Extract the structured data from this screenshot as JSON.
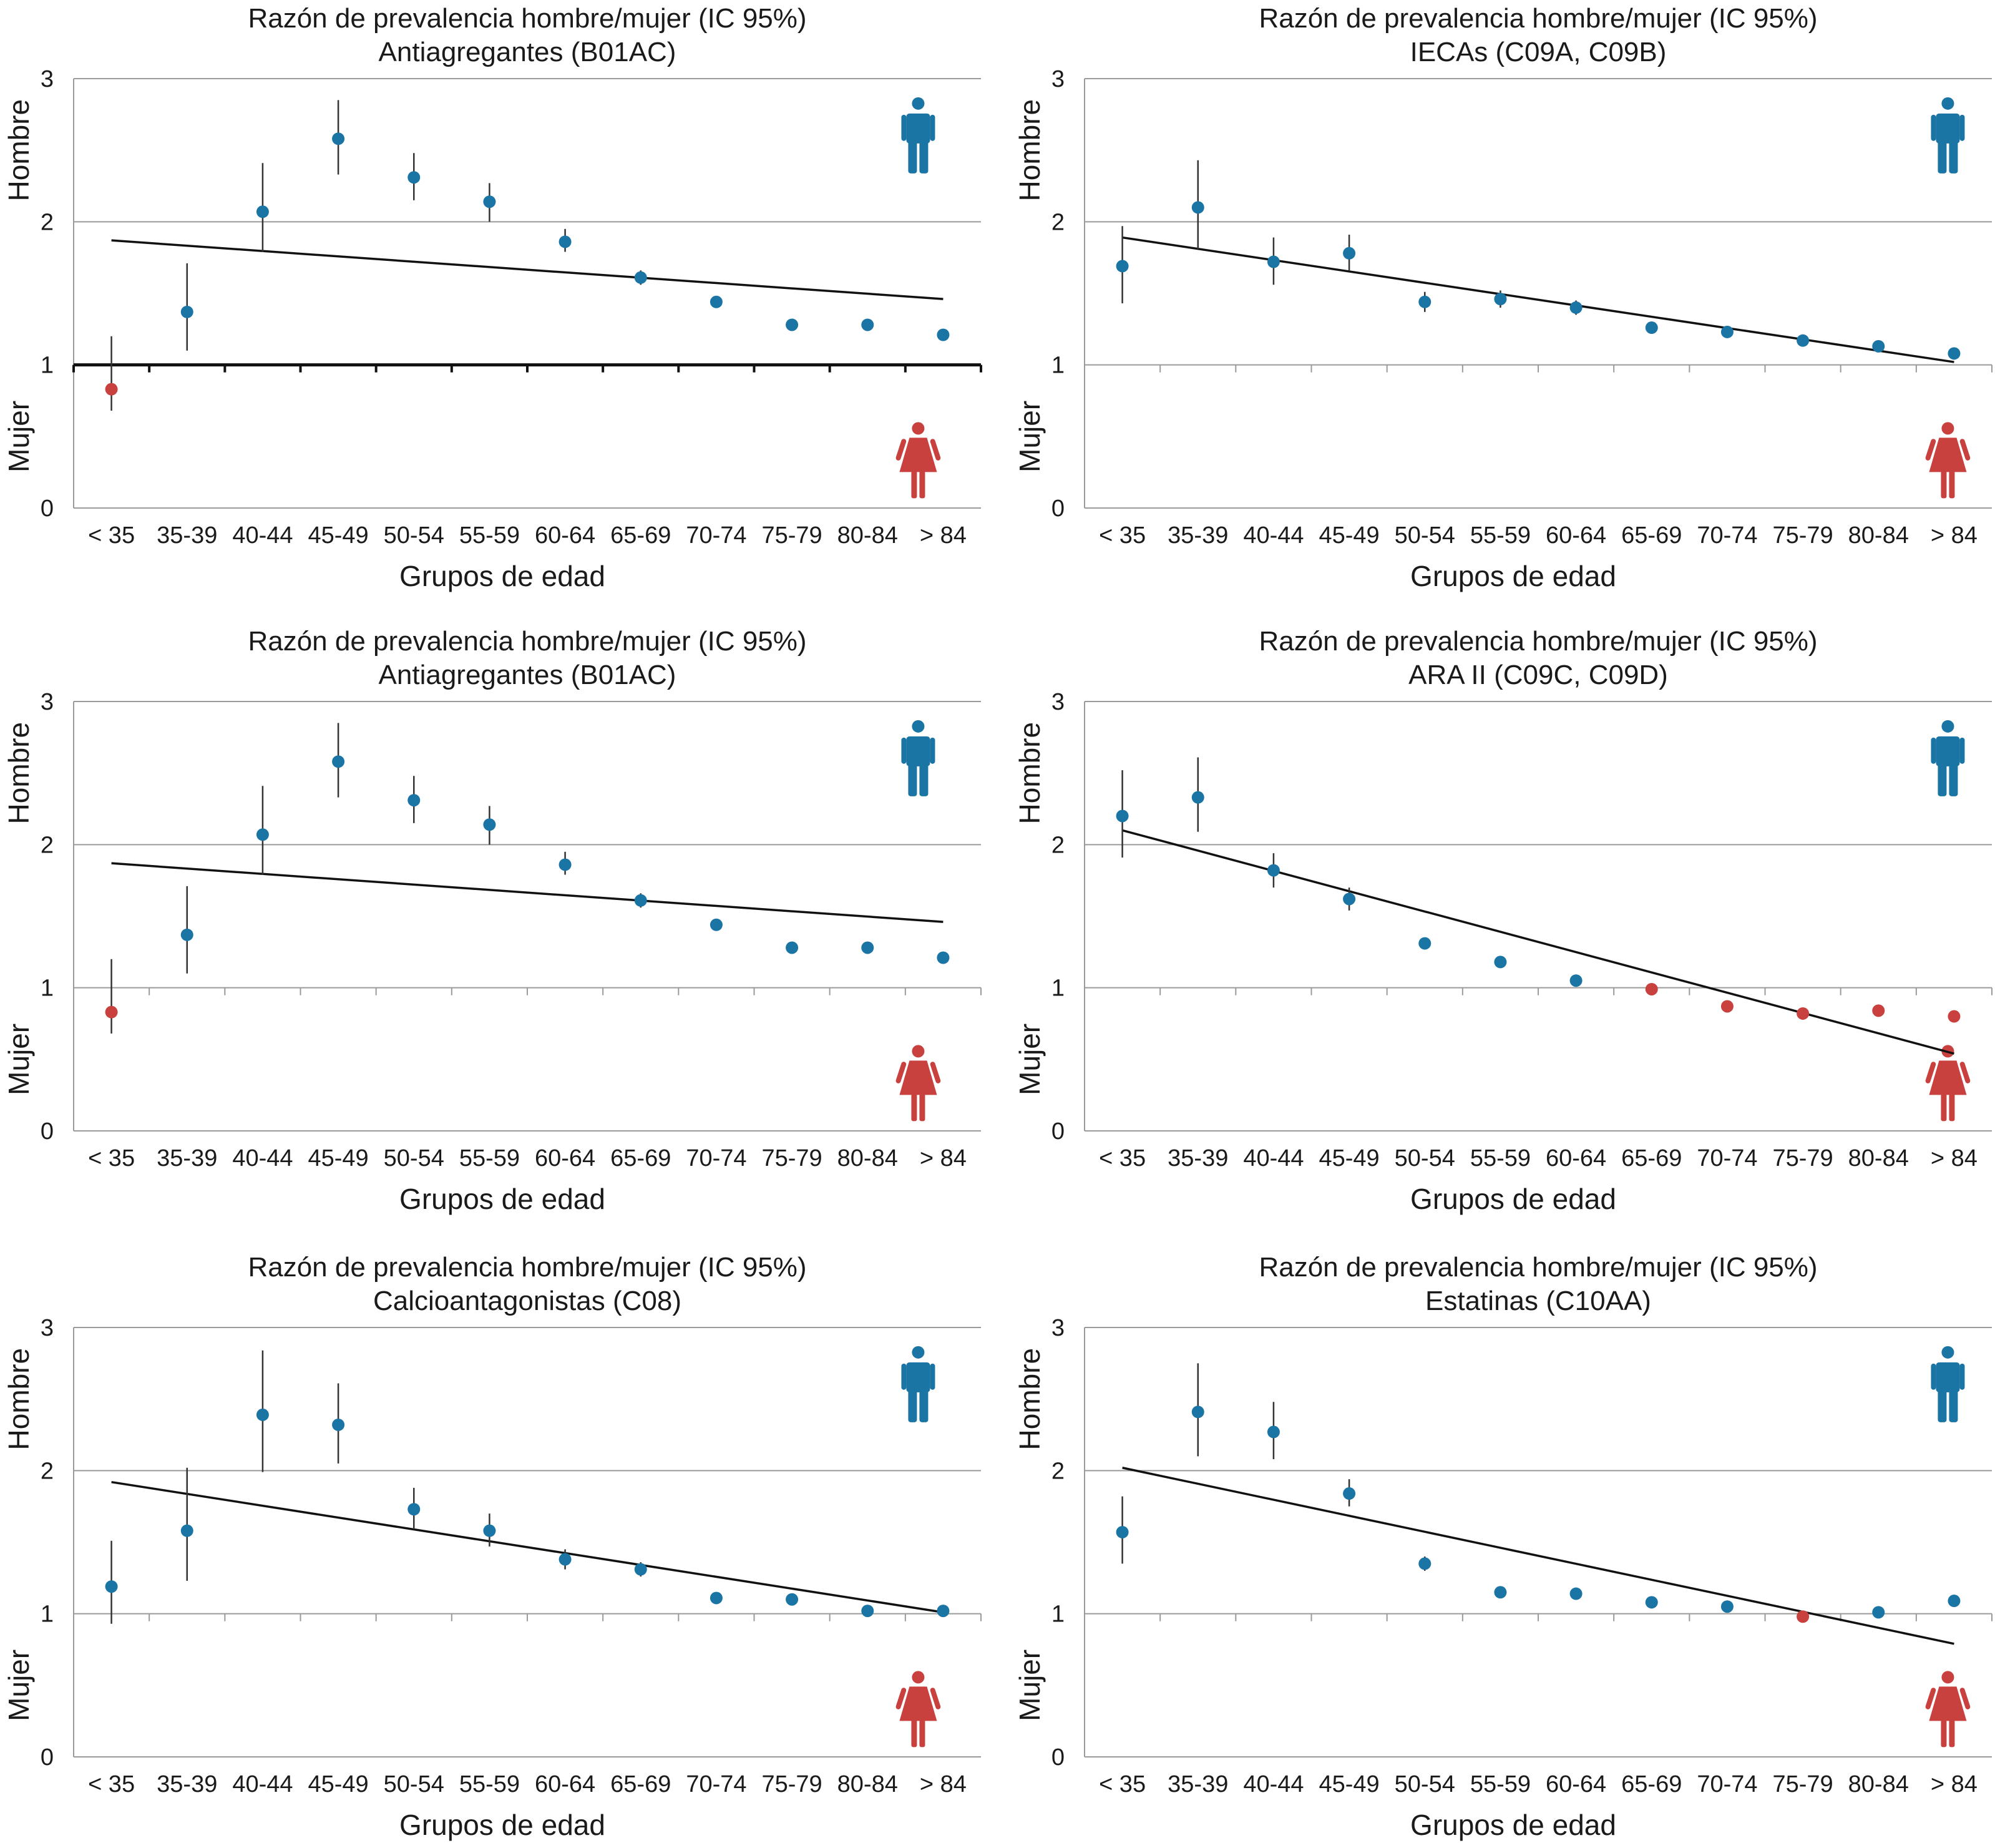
{
  "figure": {
    "title_prefix": "Razón de prevalencia hombre/mujer (IC 95%)",
    "x_axis_label": "Grupos de edad",
    "y_label_top": "Hombre",
    "y_label_bottom": "Mujer",
    "man_icon": "man-icon",
    "woman_icon": "woman-icon"
  },
  "colors": {
    "men": "#1B75A4",
    "women": "#C8413E",
    "trend": "#111111",
    "grid": "#9A9A9A"
  },
  "chart_data": [
    {
      "type": "scatter",
      "title": "Razón de prevalencia hombre/mujer (IC 95%)",
      "subtitle": "Antiagregantes (B01AC)",
      "xlabel": "Grupos de edad",
      "ylabel_top": "Hombre",
      "ylabel_bottom": "Mujer",
      "categories": [
        "< 35",
        "35-39",
        "40-44",
        "45-49",
        "50-54",
        "55-59",
        "60-64",
        "65-69",
        "70-74",
        "75-79",
        "80-84",
        "> 84"
      ],
      "values": [
        0.83,
        1.37,
        2.07,
        2.58,
        2.31,
        2.14,
        1.86,
        1.61,
        1.44,
        1.28,
        1.28,
        1.21
      ],
      "ci_low": [
        0.68,
        1.1,
        1.79,
        2.33,
        2.15,
        2.0,
        1.79,
        1.56,
        1.4,
        1.26,
        1.26,
        1.19
      ],
      "ci_high": [
        1.2,
        1.71,
        2.41,
        2.85,
        2.48,
        2.27,
        1.95,
        1.66,
        1.48,
        1.3,
        1.3,
        1.23
      ],
      "trend": [
        1.87,
        1.46
      ],
      "ylim": [
        0,
        3
      ],
      "yticks": [
        0,
        1,
        2,
        3
      ],
      "emphasize_reference": true
    },
    {
      "type": "scatter",
      "title": "Razón de prevalencia hombre/mujer (IC 95%)",
      "subtitle": "IECAs (C09A, C09B)",
      "xlabel": "Grupos de edad",
      "ylabel_top": "Hombre",
      "ylabel_bottom": "Mujer",
      "categories": [
        "< 35",
        "35-39",
        "40-44",
        "45-49",
        "50-54",
        "55-59",
        "60-64",
        "65-69",
        "70-74",
        "75-79",
        "80-84",
        "> 84"
      ],
      "values": [
        1.69,
        2.1,
        1.72,
        1.78,
        1.44,
        1.46,
        1.4,
        1.26,
        1.23,
        1.17,
        1.13,
        1.08
      ],
      "ci_low": [
        1.43,
        1.81,
        1.56,
        1.66,
        1.37,
        1.4,
        1.35,
        1.22,
        1.21,
        1.15,
        1.11,
        1.06
      ],
      "ci_high": [
        1.97,
        2.43,
        1.89,
        1.91,
        1.51,
        1.52,
        1.45,
        1.3,
        1.25,
        1.19,
        1.15,
        1.1
      ],
      "trend": [
        1.89,
        1.02
      ],
      "ylim": [
        0,
        3
      ],
      "yticks": [
        0,
        1,
        2,
        3
      ],
      "emphasize_reference": false
    },
    {
      "type": "scatter",
      "title": "Razón de prevalencia hombre/mujer (IC 95%)",
      "subtitle": "Antiagregantes (B01AC)",
      "xlabel": "Grupos de edad",
      "ylabel_top": "Hombre",
      "ylabel_bottom": "Mujer",
      "categories": [
        "< 35",
        "35-39",
        "40-44",
        "45-49",
        "50-54",
        "55-59",
        "60-64",
        "65-69",
        "70-74",
        "75-79",
        "80-84",
        "> 84"
      ],
      "values": [
        0.83,
        1.37,
        2.07,
        2.58,
        2.31,
        2.14,
        1.86,
        1.61,
        1.44,
        1.28,
        1.28,
        1.21
      ],
      "ci_low": [
        0.68,
        1.1,
        1.79,
        2.33,
        2.15,
        2.0,
        1.79,
        1.56,
        1.4,
        1.26,
        1.26,
        1.19
      ],
      "ci_high": [
        1.2,
        1.71,
        2.41,
        2.85,
        2.48,
        2.27,
        1.95,
        1.66,
        1.48,
        1.3,
        1.3,
        1.23
      ],
      "trend": [
        1.87,
        1.46
      ],
      "ylim": [
        0,
        3
      ],
      "yticks": [
        0,
        1,
        2,
        3
      ],
      "emphasize_reference": false
    },
    {
      "type": "scatter",
      "title": "Razón de prevalencia hombre/mujer (IC 95%)",
      "subtitle": "ARA II (C09C, C09D)",
      "xlabel": "Grupos de edad",
      "ylabel_top": "Hombre",
      "ylabel_bottom": "Mujer",
      "categories": [
        "< 35",
        "35-39",
        "40-44",
        "45-49",
        "50-54",
        "55-59",
        "60-64",
        "65-69",
        "70-74",
        "75-79",
        "80-84",
        "> 84"
      ],
      "values": [
        2.2,
        2.33,
        1.82,
        1.62,
        1.31,
        1.18,
        1.05,
        0.99,
        0.87,
        0.82,
        0.84,
        0.8
      ],
      "ci_low": [
        1.91,
        2.09,
        1.7,
        1.54,
        1.27,
        1.15,
        1.03,
        0.97,
        0.86,
        0.81,
        0.83,
        0.79
      ],
      "ci_high": [
        2.52,
        2.61,
        1.94,
        1.7,
        1.35,
        1.21,
        1.07,
        1.01,
        0.88,
        0.83,
        0.85,
        0.81
      ],
      "trend": [
        2.1,
        0.54
      ],
      "ylim": [
        0,
        3
      ],
      "yticks": [
        0,
        1,
        2,
        3
      ],
      "emphasize_reference": false
    },
    {
      "type": "scatter",
      "title": "Razón de prevalencia hombre/mujer (IC 95%)",
      "subtitle": "Calcioantagonistas (C08)",
      "xlabel": "Grupos de edad",
      "ylabel_top": "Hombre",
      "ylabel_bottom": "Mujer",
      "categories": [
        "< 35",
        "35-39",
        "40-44",
        "45-49",
        "50-54",
        "55-59",
        "60-64",
        "65-69",
        "70-74",
        "75-79",
        "80-84",
        "> 84"
      ],
      "values": [
        1.19,
        1.58,
        2.39,
        2.32,
        1.73,
        1.58,
        1.38,
        1.31,
        1.11,
        1.1,
        1.02,
        1.02
      ],
      "ci_low": [
        0.93,
        1.23,
        1.99,
        2.05,
        1.59,
        1.47,
        1.31,
        1.26,
        1.08,
        1.07,
        1.0,
        0.99
      ],
      "ci_high": [
        1.51,
        2.02,
        2.84,
        2.61,
        1.88,
        1.7,
        1.45,
        1.36,
        1.14,
        1.13,
        1.04,
        1.05
      ],
      "trend": [
        1.92,
        1.01
      ],
      "ylim": [
        0,
        3
      ],
      "yticks": [
        0,
        1,
        2,
        3
      ],
      "emphasize_reference": false
    },
    {
      "type": "scatter",
      "title": "Razón de prevalencia hombre/mujer (IC 95%)",
      "subtitle": "Estatinas (C10AA)",
      "xlabel": "Grupos de edad",
      "ylabel_top": "Hombre",
      "ylabel_bottom": "Mujer",
      "categories": [
        "< 35",
        "35-39",
        "40-44",
        "45-49",
        "50-54",
        "55-59",
        "60-64",
        "65-69",
        "70-74",
        "75-79",
        "80-84",
        "> 84"
      ],
      "values": [
        1.57,
        2.41,
        2.27,
        1.84,
        1.35,
        1.15,
        1.14,
        1.08,
        1.05,
        0.98,
        1.01,
        1.09
      ],
      "ci_low": [
        1.35,
        2.1,
        2.08,
        1.75,
        1.3,
        1.13,
        1.12,
        1.06,
        1.04,
        0.97,
        1.0,
        1.07
      ],
      "ci_high": [
        1.82,
        2.75,
        2.48,
        1.94,
        1.4,
        1.17,
        1.16,
        1.1,
        1.06,
        0.99,
        1.02,
        1.11
      ],
      "trend": [
        2.02,
        0.79
      ],
      "ylim": [
        0,
        3
      ],
      "yticks": [
        0,
        1,
        2,
        3
      ],
      "emphasize_reference": false
    }
  ]
}
